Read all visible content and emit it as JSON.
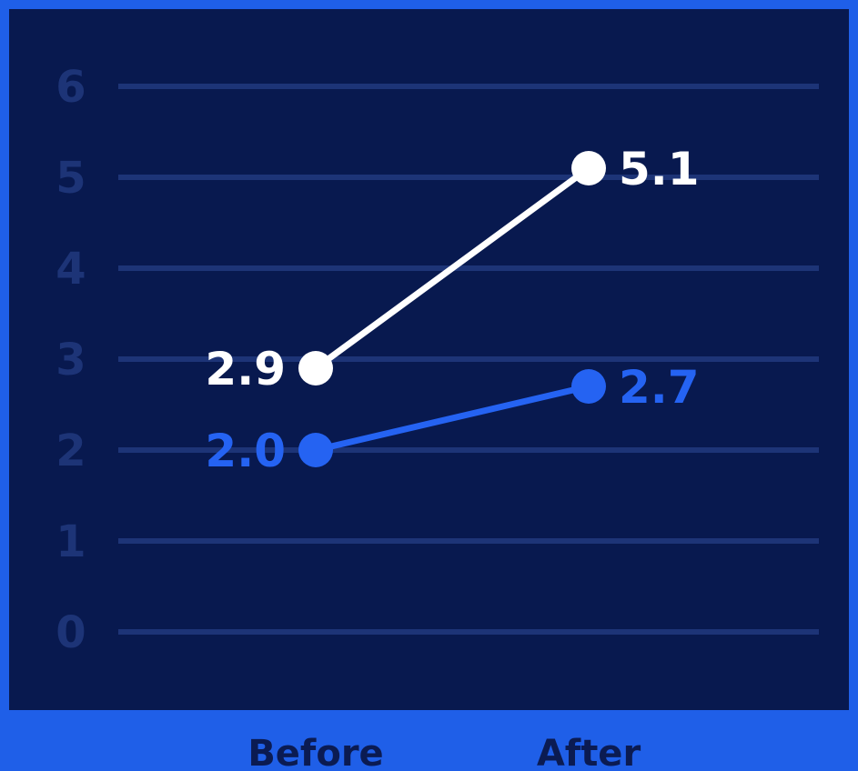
{
  "chart_data": {
    "type": "line",
    "categories": [
      "Before",
      "After"
    ],
    "yticks": [
      "0",
      "1",
      "2",
      "3",
      "4",
      "5",
      "6"
    ],
    "ylim": [
      0,
      6
    ],
    "grid": true,
    "series": [
      {
        "values": [
          2.9,
          5.1
        ],
        "labels": [
          "2.9",
          "5.1"
        ],
        "color": "#ffffff"
      },
      {
        "values": [
          2.0,
          2.7
        ],
        "labels": [
          "2.0",
          "2.7"
        ],
        "color": "#2563f2"
      }
    ]
  },
  "colors": {
    "background": "#08194f",
    "frame": "#1f5fe8",
    "gridline": "#1d3477",
    "tick_text": "#1d3477",
    "category_text": "#0b1b52"
  }
}
